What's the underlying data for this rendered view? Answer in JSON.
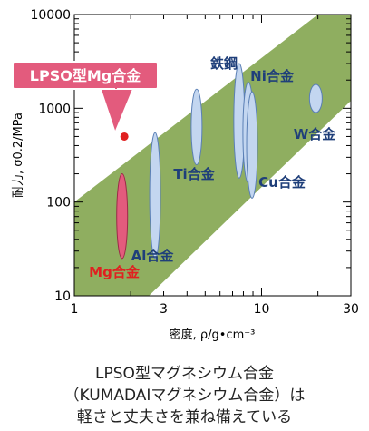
{
  "chart_data": {
    "type": "scatter",
    "xscale": "log",
    "yscale": "log",
    "xlim": [
      1,
      30
    ],
    "ylim": [
      10,
      10000
    ],
    "xticks": [
      "1",
      "3",
      "10",
      "30"
    ],
    "yticks": [
      "10",
      "100",
      "1000",
      "10000"
    ],
    "xlabel": "密度, ρ/g•cm⁻³",
    "ylabel": "耐力, σ0.2/MPa",
    "band_color": "#8fae60",
    "ellipse_fill": "#c3d6f0",
    "mg_fill": "#e35b7d",
    "label_color": "#1f3f7a",
    "point_color": "#e02020",
    "callout_color": "#e35b7d",
    "band": {
      "upper": [
        [
          1,
          100
        ],
        [
          20,
          10000
        ]
      ],
      "lower": [
        [
          2.5,
          10
        ],
        [
          30,
          1200
        ]
      ]
    },
    "series": [
      {
        "name": "Mg合金",
        "density": [
          1.8,
          1.8
        ],
        "strength": [
          25,
          200
        ],
        "label_color": "#e02020"
      },
      {
        "name": "Al合金",
        "density": [
          2.7,
          2.7
        ],
        "strength": [
          25,
          550
        ]
      },
      {
        "name": "Ti合金",
        "density": [
          4.5,
          4.5
        ],
        "strength": [
          250,
          1600
        ]
      },
      {
        "name": "鉄鋼",
        "density": [
          7.6,
          7.6
        ],
        "strength": [
          180,
          3000
        ]
      },
      {
        "name": "Ni合金",
        "density": [
          8.5,
          8.5
        ],
        "strength": [
          160,
          1900
        ]
      },
      {
        "name": "Cu合金",
        "density": [
          8.9,
          8.9
        ],
        "strength": [
          110,
          1500
        ]
      },
      {
        "name": "W合金",
        "density": [
          19.5,
          19.5
        ],
        "strength": [
          900,
          1800
        ]
      }
    ],
    "point": {
      "name": "LPSO型Mg合金",
      "density": 1.85,
      "strength": 500
    }
  },
  "caption": {
    "line1": "LPSO型マグネシウム合金",
    "line2": "（KUMADAIマグネシウム合金）は",
    "line3": "軽さと丈夫さを兼ね備えている"
  }
}
